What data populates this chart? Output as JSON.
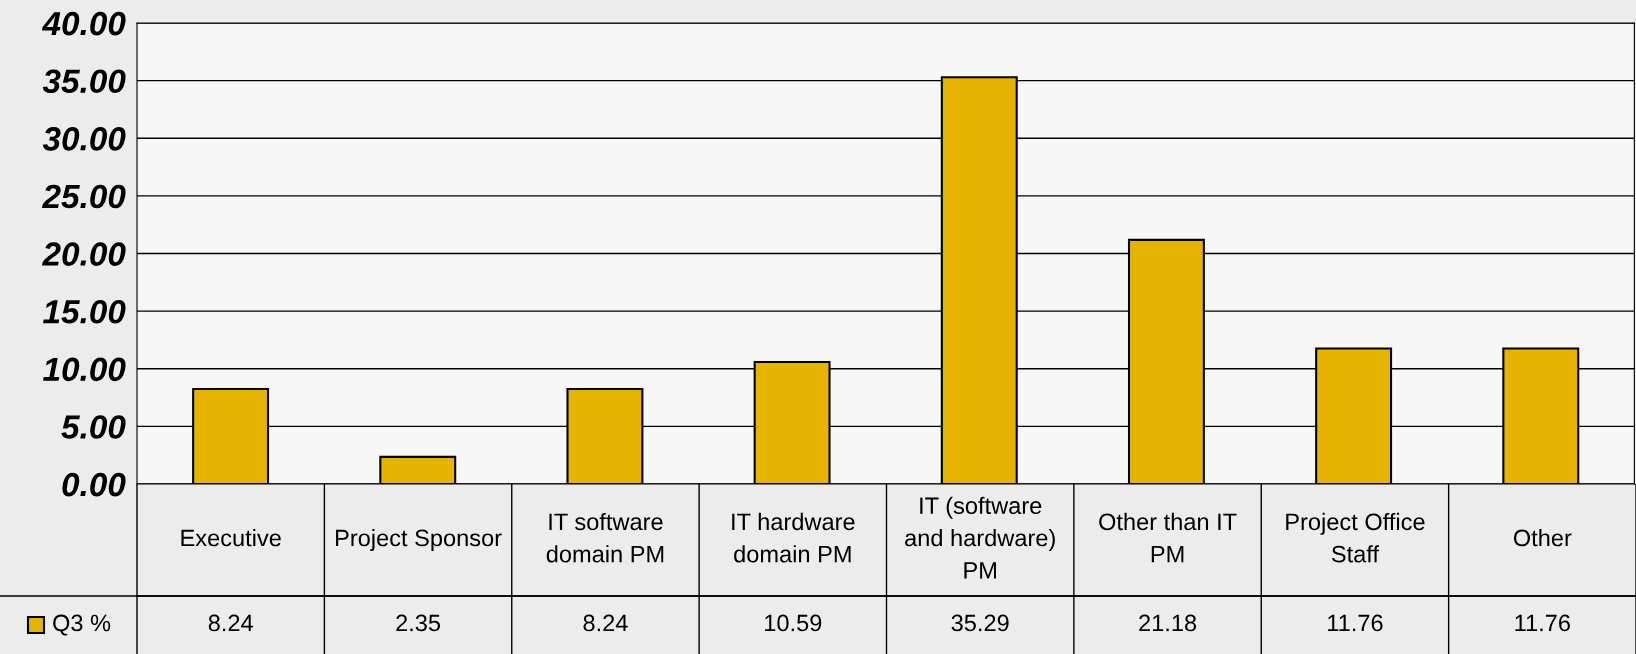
{
  "chart_data": {
    "type": "bar",
    "categories": [
      "Executive",
      "Project Sponsor",
      "IT software domain PM",
      "IT hardware domain PM",
      "IT (software and hardware) PM",
      "Other than IT PM",
      "Project Office Staff",
      "Other"
    ],
    "series": [
      {
        "name": "Q3 %",
        "color": "#e6b400",
        "values": [
          8.24,
          2.35,
          8.24,
          10.59,
          35.29,
          21.18,
          11.76,
          11.76
        ]
      }
    ],
    "ylim": [
      0,
      40
    ],
    "yticks": [
      {
        "value": 0,
        "label": "0.00"
      },
      {
        "value": 5,
        "label": "5.00"
      },
      {
        "value": 10,
        "label": "10.00"
      },
      {
        "value": 15,
        "label": "15.00"
      },
      {
        "value": 20,
        "label": "20.00"
      },
      {
        "value": 25,
        "label": "25.00"
      },
      {
        "value": 30,
        "label": "30.00"
      },
      {
        "value": 35,
        "label": "35.00"
      },
      {
        "value": 40,
        "label": "40.00"
      }
    ],
    "grid": "y",
    "legend": "bottom left",
    "data_labels": true
  }
}
